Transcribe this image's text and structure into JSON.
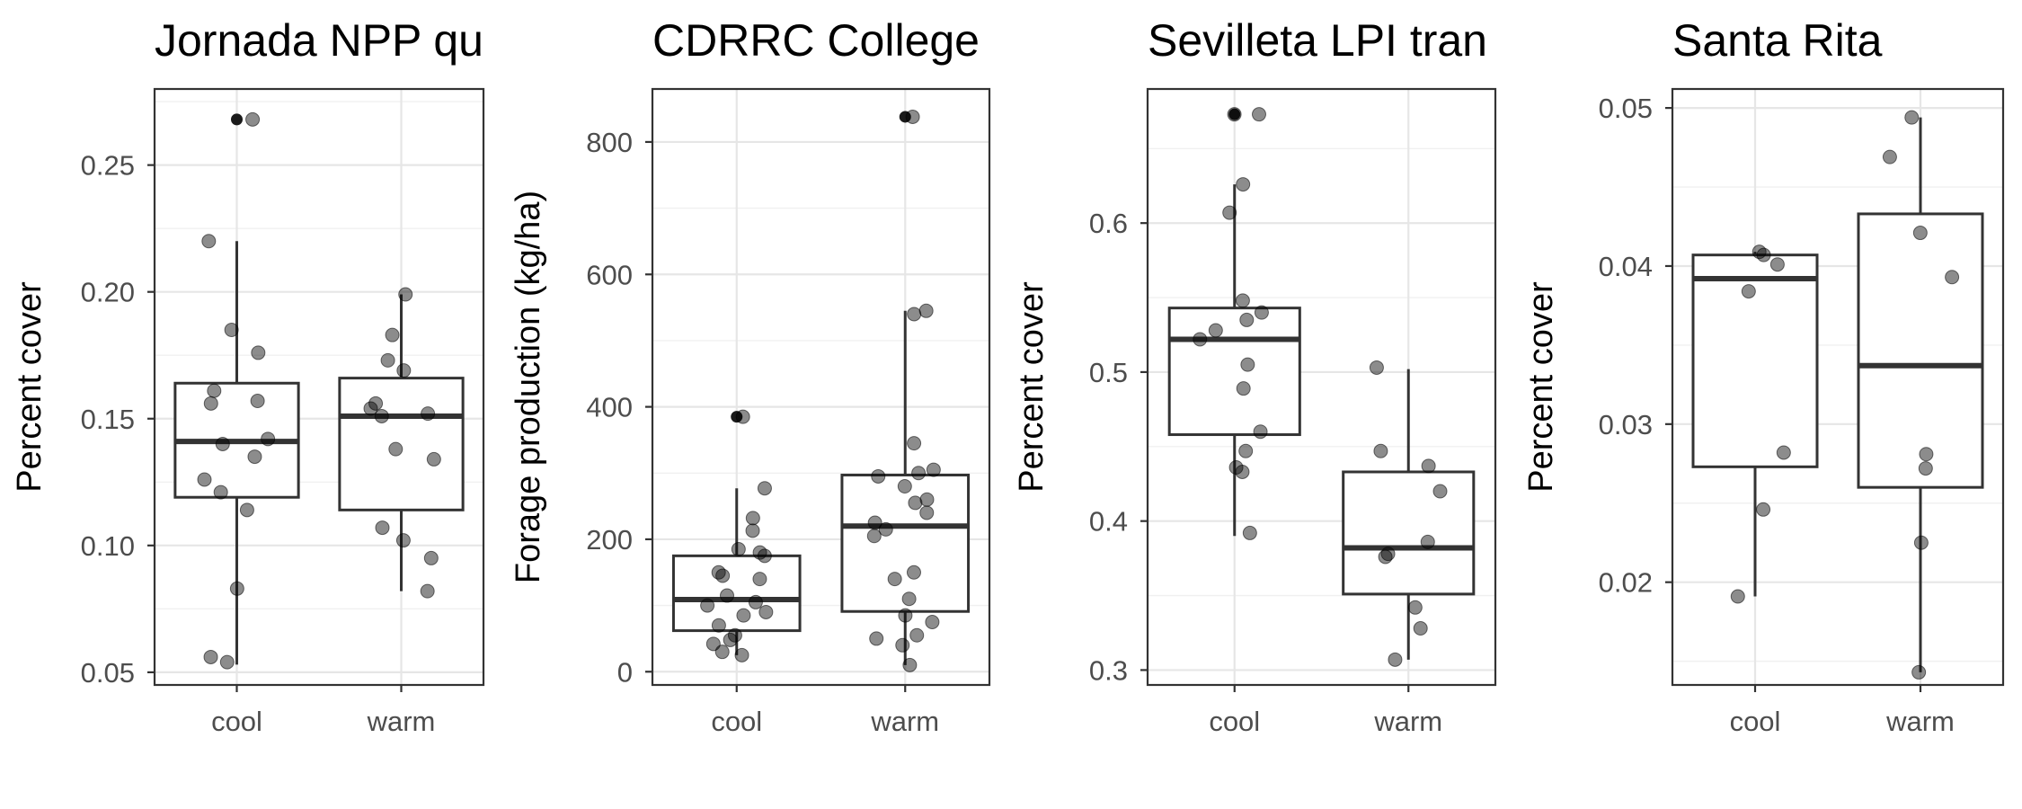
{
  "chart_data": [
    {
      "type": "box",
      "title": "Jornada NPP qu",
      "ylabel": "Percent cover",
      "categories": [
        "cool",
        "warm"
      ],
      "ylim": [
        0.045,
        0.28
      ],
      "yticks": [
        "0.05",
        "0.10",
        "0.15",
        "0.20",
        "0.25"
      ],
      "boxes": [
        {
          "category": "cool",
          "q1": 0.119,
          "median": 0.141,
          "q3": 0.164,
          "whisker_low": 0.053,
          "whisker_high": 0.22,
          "outliers": [
            0.268
          ]
        },
        {
          "category": "warm",
          "q1": 0.114,
          "median": 0.151,
          "q3": 0.166,
          "whisker_low": 0.082,
          "whisker_high": 0.199,
          "outliers": []
        }
      ],
      "points": {
        "cool": [
          0.268,
          0.22,
          0.185,
          0.176,
          0.161,
          0.157,
          0.156,
          0.142,
          0.14,
          0.135,
          0.126,
          0.121,
          0.114,
          0.083,
          0.056,
          0.054
        ],
        "warm": [
          0.199,
          0.183,
          0.173,
          0.169,
          0.156,
          0.154,
          0.152,
          0.151,
          0.138,
          0.134,
          0.107,
          0.102,
          0.095,
          0.082
        ]
      }
    },
    {
      "type": "box",
      "title": "CDRRC College",
      "ylabel": "Forage production (kg/ha)",
      "categories": [
        "cool",
        "warm"
      ],
      "ylim": [
        -20,
        880
      ],
      "yticks": [
        "0",
        "200",
        "400",
        "600",
        "800"
      ],
      "boxes": [
        {
          "category": "cool",
          "q1": 62,
          "median": 109,
          "q3": 175,
          "whisker_low": 25,
          "whisker_high": 277,
          "outliers": [
            385
          ]
        },
        {
          "category": "warm",
          "q1": 91,
          "median": 220,
          "q3": 297,
          "whisker_low": 10,
          "whisker_high": 545,
          "outliers": [
            838
          ]
        }
      ],
      "points": {
        "cool": [
          385,
          277,
          232,
          213,
          185,
          180,
          175,
          150,
          145,
          140,
          115,
          105,
          100,
          90,
          85,
          70,
          55,
          48,
          42,
          30,
          25
        ],
        "warm": [
          838,
          545,
          540,
          345,
          305,
          300,
          295,
          280,
          260,
          255,
          240,
          225,
          215,
          205,
          150,
          140,
          110,
          85,
          75,
          55,
          50,
          40,
          10
        ]
      }
    },
    {
      "type": "box",
      "title": "Sevilleta LPI tran",
      "ylabel": "Percent cover",
      "categories": [
        "cool",
        "warm"
      ],
      "ylim": [
        0.29,
        0.69
      ],
      "yticks": [
        "0.3",
        "0.4",
        "0.5",
        "0.6"
      ],
      "boxes": [
        {
          "category": "cool",
          "q1": 0.458,
          "median": 0.522,
          "q3": 0.543,
          "whisker_low": 0.39,
          "whisker_high": 0.626,
          "outliers": [
            0.673
          ]
        },
        {
          "category": "warm",
          "q1": 0.351,
          "median": 0.382,
          "q3": 0.433,
          "whisker_low": 0.307,
          "whisker_high": 0.502,
          "outliers": []
        }
      ],
      "points": {
        "cool": [
          0.673,
          0.673,
          0.626,
          0.607,
          0.548,
          0.54,
          0.535,
          0.528,
          0.522,
          0.505,
          0.489,
          0.46,
          0.447,
          0.436,
          0.433,
          0.392
        ],
        "warm": [
          0.503,
          0.447,
          0.437,
          0.42,
          0.386,
          0.378,
          0.376,
          0.342,
          0.328,
          0.307
        ]
      }
    },
    {
      "type": "box",
      "title": "Santa Rita",
      "ylabel": "Percent cover",
      "categories": [
        "cool",
        "warm"
      ],
      "ylim": [
        0.0135,
        0.0512
      ],
      "yticks": [
        "0.02",
        "0.03",
        "0.04",
        "0.05"
      ],
      "boxes": [
        {
          "category": "cool",
          "q1": 0.0273,
          "median": 0.0392,
          "q3": 0.0407,
          "whisker_low": 0.0191,
          "whisker_high": 0.0409,
          "outliers": []
        },
        {
          "category": "warm",
          "q1": 0.026,
          "median": 0.0337,
          "q3": 0.0433,
          "whisker_low": 0.0143,
          "whisker_high": 0.0494,
          "outliers": []
        }
      ],
      "points": {
        "cool": [
          0.0409,
          0.0407,
          0.0401,
          0.0384,
          0.0282,
          0.0246,
          0.0191
        ],
        "warm": [
          0.0494,
          0.0469,
          0.0421,
          0.0393,
          0.0281,
          0.0272,
          0.0225,
          0.0143
        ]
      }
    }
  ]
}
